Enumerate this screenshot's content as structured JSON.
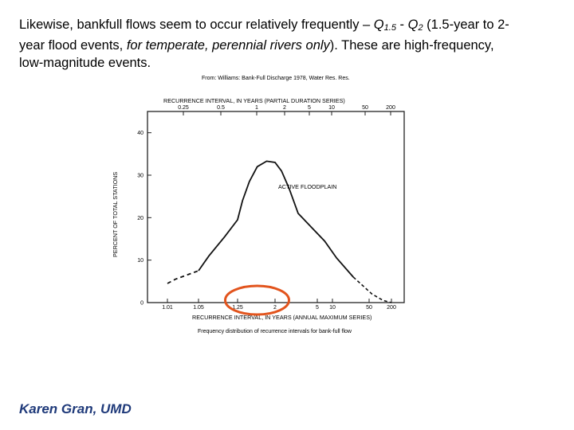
{
  "slide": {
    "line1": {
      "a": "Likewise, bankfull flows seem to occur relatively frequently – ",
      "q1": "Q",
      "q1_sub": "1.5",
      "dash": " - ",
      "q2": "Q",
      "q2_sub": "2",
      "b": " (1.5-year to 2-"
    },
    "line2": {
      "a": "year flood events, ",
      "italic": "for temperate, perennial rivers only",
      "b": ").  These are high-frequency,"
    },
    "line3": "low-magnitude events.",
    "footer": "Karen Gran, UMD"
  },
  "figure": {
    "source_note": "From: Williams: Bank-Full Discharge 1978, Water Res. Res.",
    "top_axis_title": "RECURRENCE INTERVAL, IN YEARS (PARTIAL DURATION SERIES)",
    "bottom_axis_title": "RECURRENCE INTERVAL, IN YEARS (ANNUAL MAXIMUM SERIES)",
    "caption": "Frequency distribution of recurrence intervals for bank-full flow",
    "ylabel": "PERCENT OF TOTAL STATIONS",
    "curve_label": "ACTIVE FLOODPLAIN",
    "highlight_color": "#e2541d"
  },
  "chart_data": {
    "type": "line",
    "ylim": [
      0,
      45
    ],
    "y_ticks": [
      "0",
      "10",
      "20",
      "30",
      "40"
    ],
    "x_ticks_bottom": [
      "1.01",
      "1.05",
      "1.25",
      "2",
      "5",
      "10",
      "50",
      "200"
    ],
    "x_ticks_top": [
      "0.25",
      "0.5",
      "1",
      "2",
      "5",
      "10",
      "50",
      "200"
    ],
    "series": [
      {
        "name": "ACTIVE FLOODPLAIN",
        "x": [
          1.01,
          1.02,
          1.05,
          1.1,
          1.18,
          1.25,
          1.33,
          1.45,
          1.6,
          1.8,
          2.0,
          2.3,
          2.7,
          3.3,
          4.5,
          7,
          12,
          25,
          60,
          120,
          200
        ],
        "y": [
          4.5,
          5.5,
          7.5,
          11,
          15.5,
          19.5,
          24,
          28.5,
          32,
          33.3,
          33,
          31,
          27,
          21,
          17.5,
          14.5,
          10.5,
          6,
          2,
          0.5,
          0
        ]
      }
    ]
  }
}
